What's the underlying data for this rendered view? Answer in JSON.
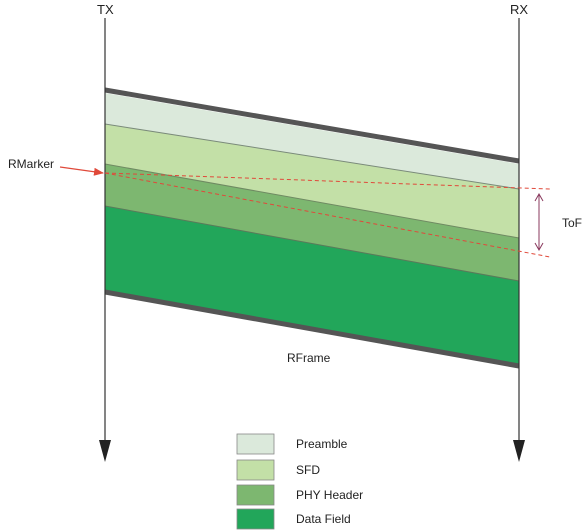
{
  "axes": {
    "tx_label": "TX",
    "rx_label": "RX"
  },
  "frame": {
    "label": "RFrame",
    "bands": [
      {
        "key": "preamble",
        "color": "#dbe9db"
      },
      {
        "key": "sfd",
        "color": "#c3e0a7"
      },
      {
        "key": "phy",
        "color": "#7db770"
      },
      {
        "key": "data",
        "color": "#22a65a"
      }
    ]
  },
  "annotations": {
    "rmarker_label": "RMarker",
    "tof_label": "ToF",
    "marker_color": "#e0493a",
    "tof_color": "#8a3a5e"
  },
  "legend": [
    {
      "label": "Preamble",
      "color": "#dbe9db"
    },
    {
      "label": "SFD",
      "color": "#c3e0a7"
    },
    {
      "label": "PHY Header",
      "color": "#7db770"
    },
    {
      "label": "Data Field",
      "color": "#22a65a"
    }
  ]
}
